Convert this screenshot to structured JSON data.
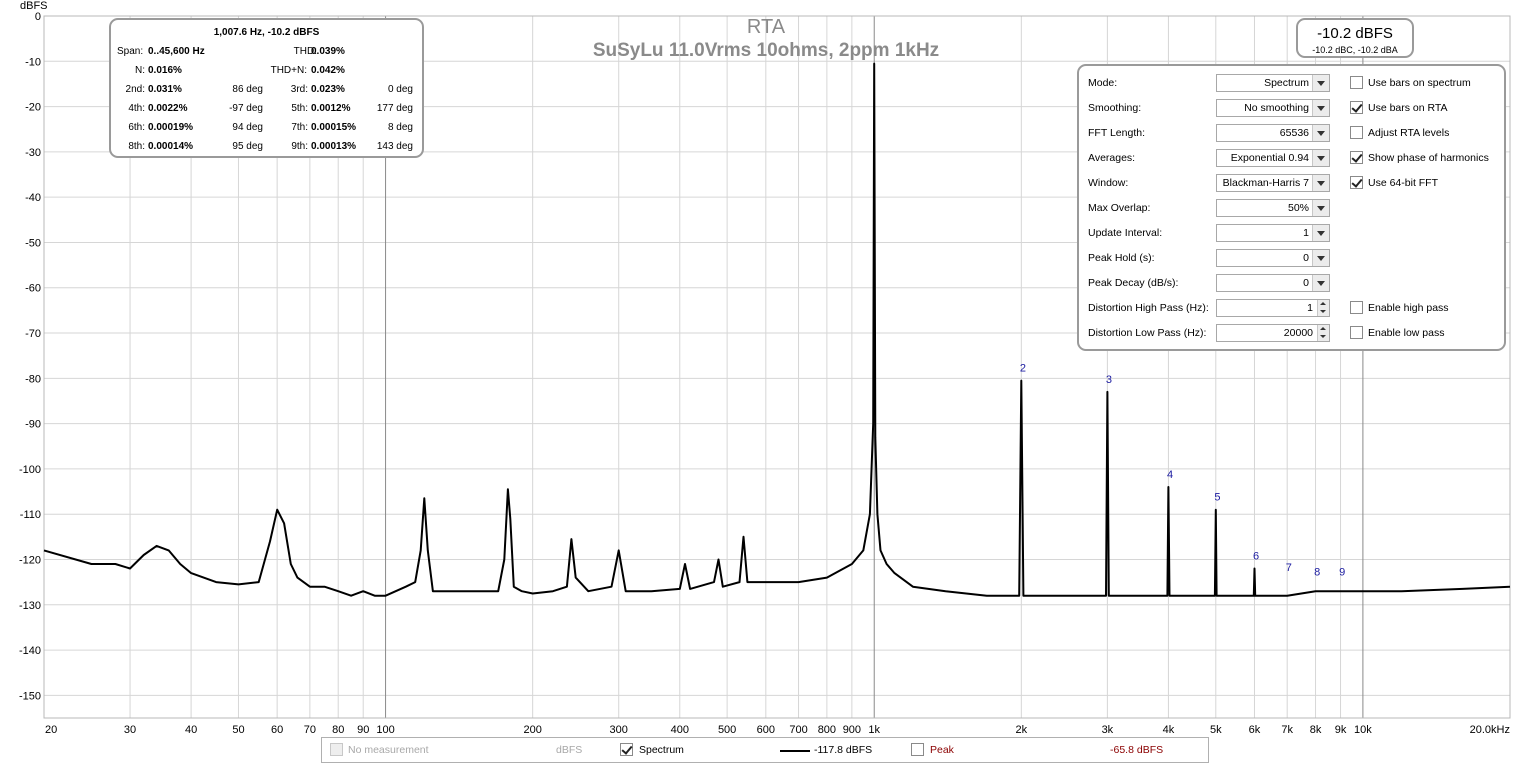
{
  "chart_data": {
    "type": "line",
    "title": "RTA",
    "subtitle": "SuSyLu 11.0Vrms 10ohms, 2ppm 1kHz",
    "ylabel": "dBFS",
    "xlabel": "",
    "x_scale": "log",
    "xlim": [
      20,
      20000
    ],
    "ylim": [
      -155,
      0
    ],
    "grid": true,
    "y_ticks": [
      0,
      -10,
      -20,
      -30,
      -40,
      -50,
      -60,
      -70,
      -80,
      -90,
      -100,
      -110,
      -120,
      -130,
      -140,
      -150
    ],
    "y_tick_labels": [
      "0",
      "-10",
      "-20",
      "-30",
      "-40",
      "-50",
      "-60",
      "-70",
      "-80",
      "-90",
      "-100",
      "-110",
      "-120",
      "-130",
      "-140",
      "-150"
    ],
    "x_ticks": [
      20,
      30,
      40,
      50,
      60,
      70,
      80,
      90,
      100,
      200,
      300,
      400,
      500,
      600,
      700,
      800,
      900,
      1000,
      2000,
      3000,
      4000,
      5000,
      6000,
      7000,
      8000,
      9000,
      10000,
      20000
    ],
    "x_tick_labels": [
      "20",
      "30",
      "40",
      "50",
      "60",
      "70",
      "80",
      "90",
      "100",
      "200",
      "300",
      "400",
      "500",
      "600",
      "700",
      "800",
      "900",
      "1k",
      "2k",
      "3k",
      "4k",
      "5k",
      "6k",
      "7k",
      "8k",
      "9k",
      "10k",
      "20.0kHz"
    ],
    "series": [
      {
        "name": "Spectrum",
        "color": "#000000",
        "x": [
          20,
          25,
          28,
          30,
          32,
          34,
          36,
          38,
          40,
          45,
          50,
          55,
          58,
          60,
          62,
          64,
          66,
          70,
          75,
          80,
          85,
          90,
          95,
          100,
          110,
          115,
          118,
          120,
          122,
          125,
          130,
          140,
          150,
          160,
          170,
          175,
          178,
          180,
          183,
          190,
          200,
          220,
          235,
          240,
          245,
          260,
          290,
          300,
          310,
          350,
          400,
          410,
          420,
          470,
          480,
          490,
          530,
          540,
          550,
          600,
          700,
          800,
          900,
          950,
          980,
          995,
          1000,
          1005,
          1015,
          1030,
          1060,
          1100,
          1200,
          1400,
          1700,
          1980,
          2000,
          2020,
          2500,
          2980,
          3000,
          3020,
          3500,
          3980,
          4000,
          4020,
          4500,
          4980,
          5000,
          5020,
          5500,
          5980,
          6000,
          6020,
          7000,
          8000,
          9000,
          12000,
          16000,
          20000
        ],
        "y": [
          -118,
          -121,
          -121,
          -122,
          -119,
          -117,
          -118,
          -121,
          -123,
          -125,
          -125.5,
          -125,
          -116,
          -109,
          -112,
          -121,
          -124,
          -126,
          -126,
          -127,
          -128,
          -127,
          -128,
          -128,
          -126,
          -125,
          -118,
          -106.5,
          -118,
          -127,
          -127,
          -127,
          -127,
          -127,
          -127,
          -120,
          -104.5,
          -111,
          -126,
          -127,
          -127.5,
          -127,
          -126,
          -115.5,
          -124,
          -127,
          -126,
          -118,
          -127,
          -127,
          -126.5,
          -121,
          -126.5,
          -125,
          -120,
          -126,
          -125,
          -115,
          -125,
          -125,
          -125,
          -124,
          -121,
          -118,
          -110,
          -90,
          -10.5,
          -93,
          -110,
          -118,
          -121,
          -123,
          -126,
          -127,
          -128,
          -128,
          -80.5,
          -128,
          -128,
          -128,
          -83,
          -128,
          -128,
          -128,
          -104,
          -128,
          -128,
          -128,
          -109,
          -128,
          -128,
          -128,
          -122,
          -128,
          -128,
          -127,
          -127,
          -127,
          -126.5,
          -126
        ]
      }
    ],
    "harmonic_labels": [
      {
        "label": "2",
        "x": 2015,
        "y": -80.5
      },
      {
        "label": "3",
        "x": 3022,
        "y": -83
      },
      {
        "label": "4",
        "x": 4030,
        "y": -104
      },
      {
        "label": "5",
        "x": 5038,
        "y": -109
      },
      {
        "label": "6",
        "x": 6045,
        "y": -122
      },
      {
        "label": "7",
        "x": 7053,
        "y": -124.5
      },
      {
        "label": "8",
        "x": 8061,
        "y": -125.5
      },
      {
        "label": "9",
        "x": 9068,
        "y": -125.5
      }
    ]
  },
  "distortion_panel": {
    "header": "1,007.6 Hz, -10.2 dBFS",
    "span_label": "Span:",
    "span_value": "0..45,600 Hz",
    "thd_label": "THD:",
    "thd_value": "0.039%",
    "n_label": "N:",
    "n_value": "0.016%",
    "thdn_label": "THD+N:",
    "thdn_value": "0.042%",
    "harmonics": [
      {
        "label": "2nd:",
        "value": "0.031%",
        "phase": "86 deg"
      },
      {
        "label": "3rd:",
        "value": "0.023%",
        "phase": "0 deg"
      },
      {
        "label": "4th:",
        "value": "0.0022%",
        "phase": "-97 deg"
      },
      {
        "label": "5th:",
        "value": "0.0012%",
        "phase": "177 deg"
      },
      {
        "label": "6th:",
        "value": "0.00019%",
        "phase": "94 deg"
      },
      {
        "label": "7th:",
        "value": "0.00015%",
        "phase": "8 deg"
      },
      {
        "label": "8th:",
        "value": "0.00014%",
        "phase": "95 deg"
      },
      {
        "label": "9th:",
        "value": "0.00013%",
        "phase": "143 deg"
      }
    ]
  },
  "level_box": {
    "main": "-10.2 dBFS",
    "sub": "-10.2 dBC, -10.2 dBA"
  },
  "controls": {
    "rows": [
      {
        "label": "Mode:",
        "value": "Spectrum",
        "kind": "dropdown"
      },
      {
        "label": "Smoothing:",
        "value": "No  smoothing",
        "kind": "dropdown"
      },
      {
        "label": "FFT Length:",
        "value": "65536",
        "kind": "dropdown"
      },
      {
        "label": "Averages:",
        "value": "Exponential 0.94",
        "kind": "dropdown"
      },
      {
        "label": "Window:",
        "value": "Blackman-Harris 7",
        "kind": "dropdown"
      },
      {
        "label": "Max Overlap:",
        "value": "50%",
        "kind": "dropdown"
      },
      {
        "label": "Update Interval:",
        "value": "1",
        "kind": "dropdown"
      },
      {
        "label": "Peak Hold (s):",
        "value": "0",
        "kind": "dropdown"
      },
      {
        "label": "Peak Decay (dB/s):",
        "value": "0",
        "kind": "dropdown"
      },
      {
        "label": "Distortion High Pass (Hz):",
        "value": "1",
        "kind": "spin"
      },
      {
        "label": "Distortion Low Pass (Hz):",
        "value": "20000",
        "kind": "spin"
      }
    ],
    "checks": [
      {
        "label": "Use bars on spectrum",
        "checked": false,
        "row": 0
      },
      {
        "label": "Use bars on RTA",
        "checked": true,
        "row": 1
      },
      {
        "label": "Adjust RTA levels",
        "checked": false,
        "row": 2
      },
      {
        "label": "Show phase of harmonics",
        "checked": true,
        "row": 3
      },
      {
        "label": "Use 64-bit FFT",
        "checked": true,
        "row": 4
      },
      {
        "label": "Enable high pass",
        "checked": false,
        "row": 9
      },
      {
        "label": "Enable low pass",
        "checked": false,
        "row": 10
      }
    ]
  },
  "legend": {
    "no_measurement": "No measurement",
    "unit": "dBFS",
    "spectrum_label": "Spectrum",
    "spectrum_value": "-117.8 dBFS",
    "peak_label": "Peak",
    "peak_value": "-65.8 dBFS",
    "peak_color": "#8b0000"
  }
}
